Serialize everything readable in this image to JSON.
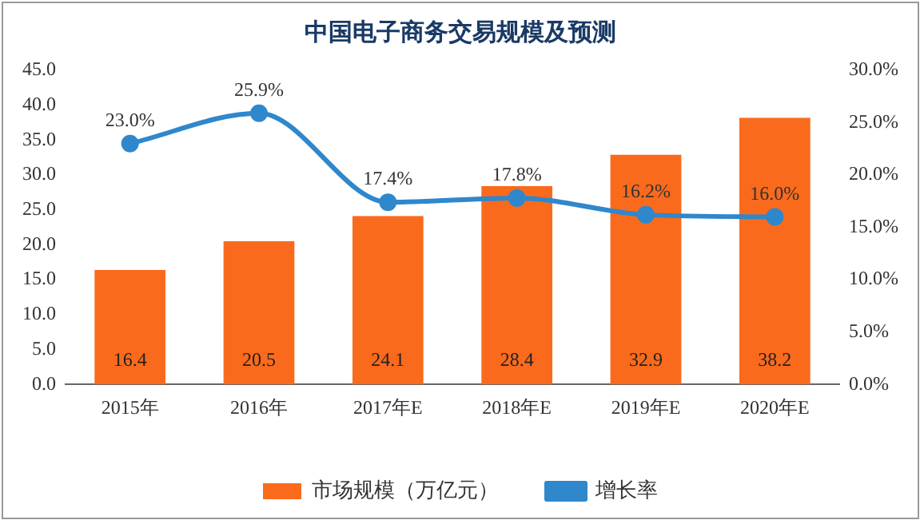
{
  "chart_data": {
    "type": "bar",
    "title": "中国电子商务交易规模及预测",
    "categories": [
      "2015年",
      "2016年",
      "2017年E",
      "2018年E",
      "2019年E",
      "2020年E"
    ],
    "series": [
      {
        "name": "市场规模（万亿元）",
        "color": "#fa6a1c",
        "values": [
          16.4,
          20.5,
          24.1,
          28.4,
          32.9,
          38.2
        ],
        "value_labels": [
          "16.4",
          "20.5",
          "24.1",
          "28.4",
          "32.9",
          "38.2"
        ]
      },
      {
        "name": "增长率",
        "type": "line",
        "axis": "y2",
        "color": "#2f87cc",
        "values": [
          23.0,
          25.9,
          17.4,
          17.8,
          16.2,
          16.0
        ],
        "value_labels": [
          "23.0%",
          "25.9%",
          "17.4%",
          "17.8%",
          "16.2%",
          "16.0%"
        ]
      }
    ],
    "ylim": [
      0,
      45
    ],
    "yticks": [
      {
        "value": 0,
        "label": "0.0"
      },
      {
        "value": 5,
        "label": "5.0"
      },
      {
        "value": 10,
        "label": "10.0"
      },
      {
        "value": 15,
        "label": "15.0"
      },
      {
        "value": 20,
        "label": "20.0"
      },
      {
        "value": 25,
        "label": "25.0"
      },
      {
        "value": 30,
        "label": "30.0"
      },
      {
        "value": 35,
        "label": "35.0"
      },
      {
        "value": 40,
        "label": "40.0"
      },
      {
        "value": 45,
        "label": "45.0"
      }
    ],
    "y2lim": [
      0,
      30
    ],
    "y2ticks": [
      {
        "value": 0,
        "label": "0.0%"
      },
      {
        "value": 5,
        "label": "5.0%"
      },
      {
        "value": 10,
        "label": "10.0%"
      },
      {
        "value": 15,
        "label": "15.0%"
      },
      {
        "value": 20,
        "label": "20.0%"
      },
      {
        "value": 25,
        "label": "25.0%"
      },
      {
        "value": 30,
        "label": "30.0%"
      }
    ],
    "legend": "bottom",
    "grid": false,
    "marker": "circle",
    "line_style": "solid"
  }
}
